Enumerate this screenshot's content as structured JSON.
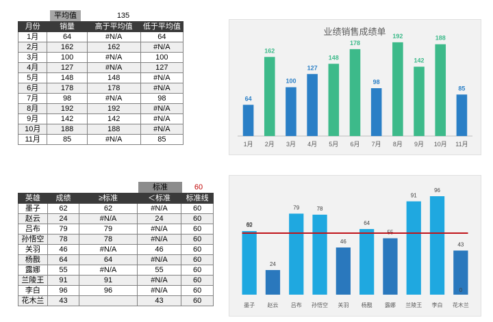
{
  "table1": {
    "avg_label": "平均值",
    "avg_value": "135",
    "headers": [
      "月份",
      "销量",
      "高于平均值",
      "低于平均值"
    ],
    "rows": [
      [
        "1月",
        "64",
        "#N/A",
        "64"
      ],
      [
        "2月",
        "162",
        "162",
        "#N/A"
      ],
      [
        "3月",
        "100",
        "#N/A",
        "100"
      ],
      [
        "4月",
        "127",
        "#N/A",
        "127"
      ],
      [
        "5月",
        "148",
        "148",
        "#N/A"
      ],
      [
        "6月",
        "178",
        "178",
        "#N/A"
      ],
      [
        "7月",
        "98",
        "#N/A",
        "98"
      ],
      [
        "8月",
        "192",
        "192",
        "#N/A"
      ],
      [
        "9月",
        "142",
        "142",
        "#N/A"
      ],
      [
        "10月",
        "188",
        "188",
        "#N/A"
      ],
      [
        "11月",
        "85",
        "#N/A",
        "85"
      ]
    ]
  },
  "table2": {
    "std_label": "标准",
    "std_value": "60",
    "headers": [
      "英雄",
      "成绩",
      "≥标准",
      "＜标准",
      "标准线"
    ],
    "rows": [
      [
        "墨子",
        "62",
        "62",
        "#N/A",
        "60"
      ],
      [
        "赵云",
        "24",
        "#N/A",
        "24",
        "60"
      ],
      [
        "吕布",
        "79",
        "79",
        "#N/A",
        "60"
      ],
      [
        "孙悟空",
        "78",
        "78",
        "#N/A",
        "60"
      ],
      [
        "关羽",
        "46",
        "#N/A",
        "46",
        "60"
      ],
      [
        "杨戬",
        "64",
        "64",
        "#N/A",
        "60"
      ],
      [
        "露娜",
        "55",
        "#N/A",
        "55",
        "60"
      ],
      [
        "兰陵王",
        "91",
        "91",
        "#N/A",
        "60"
      ],
      [
        "李白",
        "96",
        "96",
        "#N/A",
        "60"
      ],
      [
        "花木兰",
        "43",
        "",
        "43",
        "60"
      ]
    ]
  },
  "chart_data": [
    {
      "type": "bar",
      "title": "业绩销售成绩单",
      "categories": [
        "1月",
        "2月",
        "3月",
        "4月",
        "5月",
        "6月",
        "7月",
        "8月",
        "9月",
        "10月",
        "11月"
      ],
      "values": [
        64,
        162,
        100,
        127,
        148,
        178,
        98,
        192,
        142,
        188,
        85
      ],
      "average": 135,
      "colors": {
        "above": "#3dba8a",
        "below": "#2a7fc6"
      },
      "ylim": [
        0,
        210
      ]
    },
    {
      "type": "bar",
      "title": "",
      "categories": [
        "墨子",
        "赵云",
        "吕布",
        "孙悟空",
        "关羽",
        "杨戬",
        "露娜",
        "兰陵王",
        "李白",
        "花木兰"
      ],
      "values": [
        62,
        24,
        79,
        78,
        46,
        64,
        55,
        91,
        96,
        43
      ],
      "standard": 60,
      "standard_labels": [
        "60",
        "0"
      ],
      "colors": {
        "above": "#1fa8e0",
        "below": "#2a78bd",
        "line": "#c0141a"
      },
      "ylim": [
        0,
        100
      ]
    }
  ]
}
